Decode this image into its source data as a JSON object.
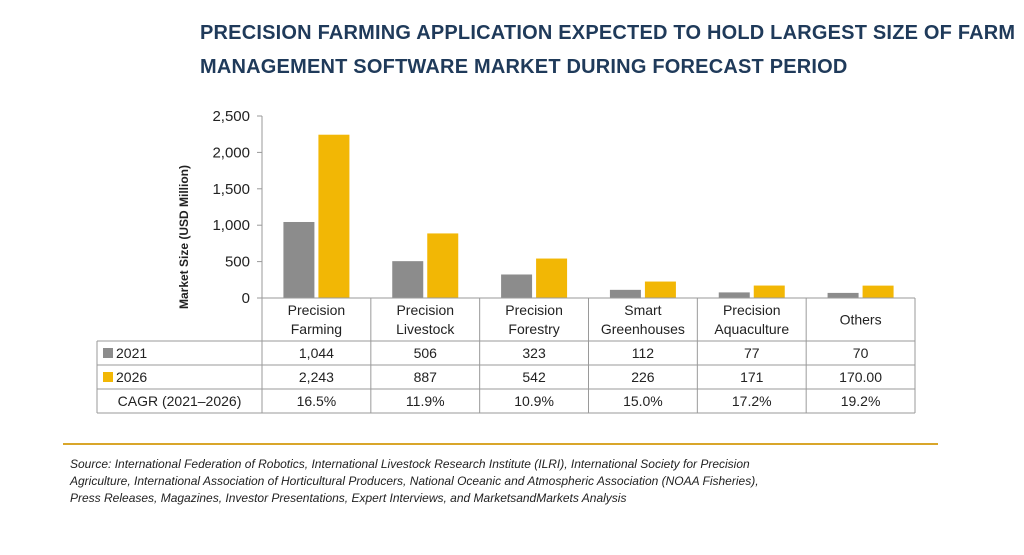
{
  "title_lines": [
    "PRECISION FARMING APPLICATION EXPECTED TO HOLD LARGEST SIZE OF FARM",
    "MANAGEMENT SOFTWARE MARKET DURING FORECAST PERIOD"
  ],
  "source_lines": [
    "Source: International Federation of Robotics, International Livestock Research Institute (ILRI), International Society for Precision",
    "Agriculture, International Association of Horticultural Producers, National Oceanic and Atmospheric Association (NOAA Fisheries),",
    "Press Releases, Magazines, Investor Presentations, Expert Interviews, and MarketsandMarkets Analysis"
  ],
  "colors": {
    "2021": "#8c8c8c",
    "2026": "#f2b705",
    "title": "#1f3a5a",
    "rule": "#d9a62a"
  },
  "chart_data": {
    "type": "bar",
    "ylabel": "Market Size (USD Million)",
    "ylim": [
      0,
      2500
    ],
    "yticks": [
      "0",
      "500",
      "1,000",
      "1,500",
      "2,000",
      "2,500"
    ],
    "categories": [
      [
        "Precision",
        "Farming"
      ],
      [
        "Precision",
        "Livestock"
      ],
      [
        "Precision",
        "Forestry"
      ],
      [
        "Smart",
        "Greenhouses"
      ],
      [
        "Precision",
        "Aquaculture"
      ],
      [
        "Others"
      ]
    ],
    "series": [
      {
        "name": "2021",
        "values": [
          1044,
          506,
          323,
          112,
          77,
          70
        ],
        "labels": [
          "1,044",
          "506",
          "323",
          "112",
          "77",
          "70"
        ]
      },
      {
        "name": "2026",
        "values": [
          2243,
          887,
          542,
          226,
          171,
          170
        ],
        "labels": [
          "2,243",
          "887",
          "542",
          "226",
          "171",
          "170.00"
        ]
      }
    ],
    "table_extra_row": {
      "label": "CAGR (2021–2026)",
      "values": [
        "16.5%",
        "11.9%",
        "10.9%",
        "15.0%",
        "17.2%",
        "19.2%"
      ]
    },
    "grid": false,
    "legend": "table"
  }
}
